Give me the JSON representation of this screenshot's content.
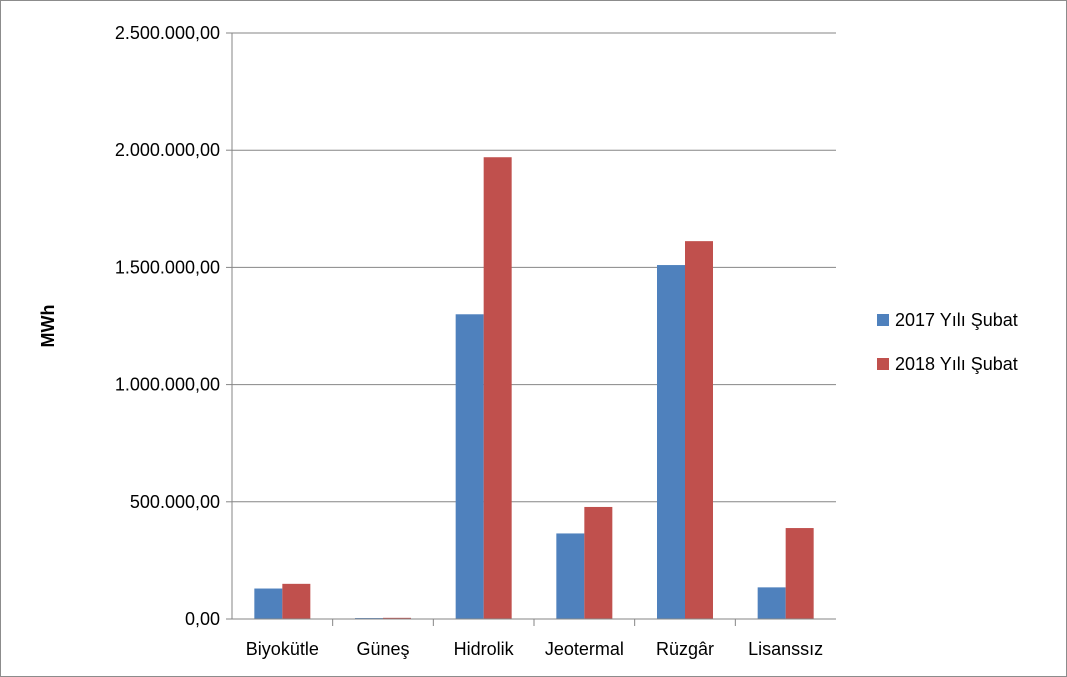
{
  "chart_data": {
    "type": "bar",
    "title": "",
    "xlabel": "",
    "ylabel": "MWh",
    "categories": [
      "Biyokütle",
      "Güneş",
      "Hidrolik",
      "Jeotermal",
      "Rüzgâr",
      "Lisanssız"
    ],
    "series": [
      {
        "name": "2017 Yılı Şubat",
        "color": "#4f81bd",
        "values": [
          130000,
          4000,
          1300000,
          365000,
          1510000,
          135000
        ]
      },
      {
        "name": "2018 Yılı Şubat",
        "color": "#c0504d",
        "values": [
          150000,
          5000,
          1970000,
          478000,
          1612000,
          388000
        ]
      }
    ],
    "ylim": [
      0,
      2500000
    ],
    "y_ticks": [
      0,
      500000,
      1000000,
      1500000,
      2000000,
      2500000
    ],
    "y_tick_labels": [
      "0,00",
      "500.000,00",
      "1.000.000,00",
      "1.500.000,00",
      "2.000.000,00",
      "2.500.000,00"
    ],
    "grid": true,
    "legend_position": "right"
  }
}
